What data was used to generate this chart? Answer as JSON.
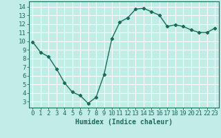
{
  "x": [
    0,
    1,
    2,
    3,
    4,
    5,
    6,
    7,
    8,
    9,
    10,
    11,
    12,
    13,
    14,
    15,
    16,
    17,
    18,
    19,
    20,
    21,
    22,
    23
  ],
  "y": [
    9.9,
    8.7,
    8.2,
    6.8,
    5.2,
    4.1,
    3.7,
    2.8,
    3.5,
    6.1,
    10.3,
    12.2,
    12.7,
    13.7,
    13.8,
    13.4,
    13.0,
    11.7,
    11.9,
    11.7,
    11.3,
    11.0,
    11.0,
    11.5
  ],
  "line_color": "#1a6b5a",
  "marker": "D",
  "marker_size": 2.2,
  "line_width": 1.0,
  "xlabel": "Humidex (Indice chaleur)",
  "xlim": [
    -0.5,
    23.5
  ],
  "ylim": [
    2.3,
    14.6
  ],
  "yticks": [
    3,
    4,
    5,
    6,
    7,
    8,
    9,
    10,
    11,
    12,
    13,
    14
  ],
  "xticks": [
    0,
    1,
    2,
    3,
    4,
    5,
    6,
    7,
    8,
    9,
    10,
    11,
    12,
    13,
    14,
    15,
    16,
    17,
    18,
    19,
    20,
    21,
    22,
    23
  ],
  "bg_color": "#c2ece6",
  "grid_color": "#ffffff",
  "tick_color": "#1a6b5a",
  "label_color": "#1a6b5a",
  "xlabel_fontsize": 7,
  "tick_fontsize": 6.5
}
